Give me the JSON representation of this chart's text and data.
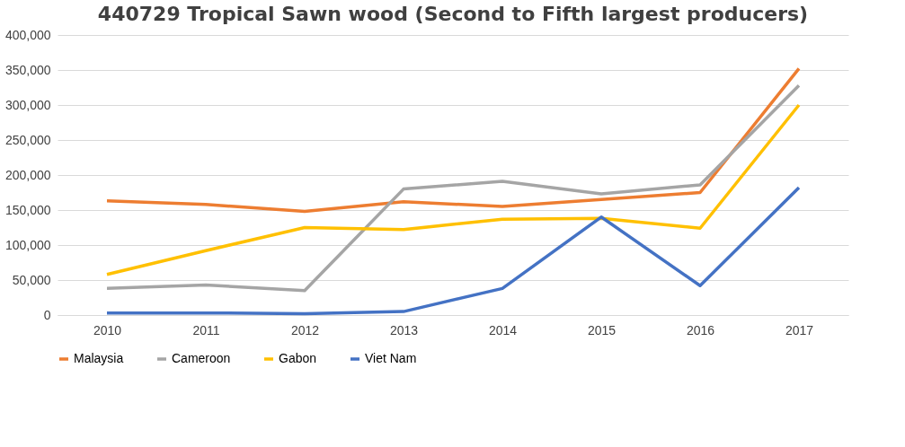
{
  "chart_data": {
    "type": "line",
    "title": "440729 Tropical Sawn wood (Second to Fifth largest producers)",
    "categories": [
      "2010",
      "2011",
      "2012",
      "2013",
      "2014",
      "2015",
      "2016",
      "2017"
    ],
    "series": [
      {
        "name": "Malaysia",
        "color": "#ed7d31",
        "values": [
          163000,
          158000,
          148000,
          162000,
          155000,
          165000,
          175000,
          352000
        ]
      },
      {
        "name": "Cameroon",
        "color": "#a5a5a5",
        "values": [
          38000,
          43000,
          35000,
          180000,
          191000,
          173000,
          186000,
          328000
        ]
      },
      {
        "name": "Gabon",
        "color": "#ffc000",
        "values": [
          58000,
          92000,
          125000,
          122000,
          137000,
          138000,
          124000,
          300000
        ]
      },
      {
        "name": "Viet Nam",
        "color": "#4472c4",
        "values": [
          3000,
          3000,
          2000,
          5000,
          38000,
          140000,
          42000,
          182000
        ]
      }
    ],
    "ylim": [
      0,
      400000
    ],
    "yticks": [
      0,
      {
        "value": 50000,
        "label": "50,000"
      },
      {
        "value": 100000,
        "label": "100,000"
      },
      {
        "value": 150000,
        "label": "150,000"
      },
      {
        "value": 200000,
        "label": "200,000"
      },
      {
        "value": 250000,
        "label": "250,000"
      },
      {
        "value": 300000,
        "label": "300,000"
      },
      {
        "value": 350000,
        "label": "350,000"
      },
      {
        "value": 400000,
        "label": "400,000"
      }
    ],
    "grid": "y",
    "legend": "bottom"
  }
}
